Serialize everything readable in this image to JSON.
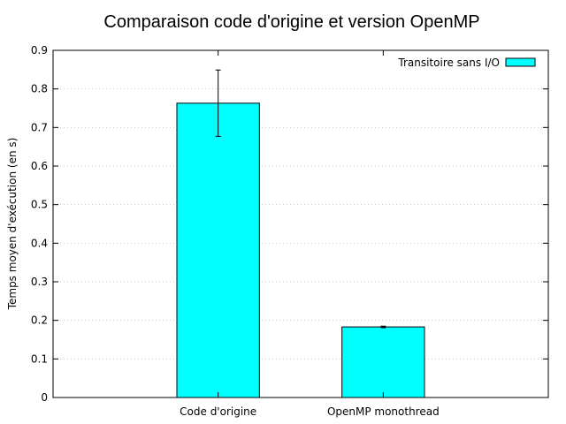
{
  "chart_data": {
    "type": "bar",
    "title": "Comparaison code d'origine et version OpenMP",
    "xlabel": "",
    "ylabel": "Temps moyen d'exécution (en s)",
    "ylim": [
      0,
      0.9
    ],
    "yticks": [
      0,
      0.1,
      0.2,
      0.3,
      0.4,
      0.5,
      0.6,
      0.7,
      0.8,
      0.9
    ],
    "ytick_labels": [
      "0",
      "0.1",
      "0.2",
      "0.3",
      "0.4",
      "0.5",
      "0.6",
      "0.7",
      "0.8",
      "0.9"
    ],
    "grid": "horizontal-dotted",
    "legend_position": "top-right",
    "categories": [
      "Code d'origine",
      "OpenMP monothread"
    ],
    "series": [
      {
        "name": "Transitoire sans I/O",
        "color": "#00ffff",
        "values": [
          0.763,
          0.183
        ],
        "error_low": [
          0.677,
          0.181
        ],
        "error_high": [
          0.849,
          0.185
        ]
      }
    ]
  }
}
